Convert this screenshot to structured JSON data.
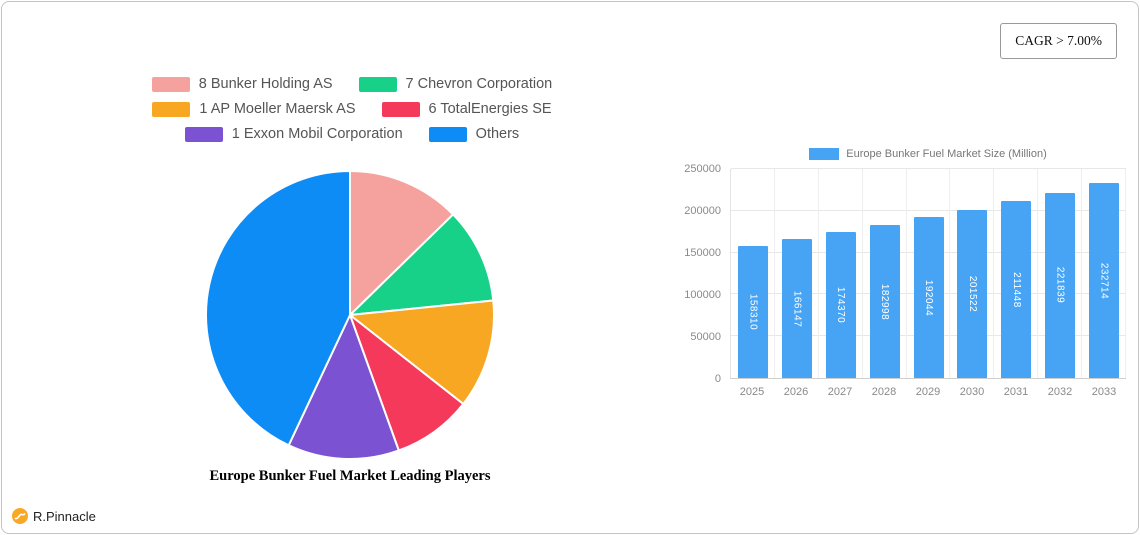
{
  "cagr_badge": {
    "label": "CAGR > 7.00%"
  },
  "branding": {
    "logo_text": "R.Pinnacle"
  },
  "chart_data": [
    {
      "type": "pie",
      "title": "Europe Bunker Fuel Market Leading Players",
      "labels": [
        "8 Bunker Holding AS",
        "7 Chevron Corporation",
        "1 AP Moeller Maersk AS",
        "6 TotalEnergies SE",
        "1 Exxon Mobil Corporation",
        "Others"
      ],
      "values": [
        12.7,
        10.7,
        12.2,
        8.9,
        12.5,
        43.0
      ],
      "colors": [
        "#f5a19d",
        "#18d189",
        "#f8a723",
        "#f4395b",
        "#7b52d1",
        "#0e8cf6"
      ],
      "legend_position": "top"
    },
    {
      "type": "bar",
      "legend_label": "Europe Bunker Fuel Market Size (Million)",
      "categories": [
        "2025",
        "2026",
        "2027",
        "2028",
        "2029",
        "2030",
        "2031",
        "2032",
        "2033"
      ],
      "values": [
        158310,
        166147,
        174370,
        182998,
        192044,
        201522,
        211448,
        221839,
        232714
      ],
      "bar_color": "#47a4f5",
      "ylim": [
        0,
        250000
      ],
      "yticks": [
        0,
        50000,
        100000,
        150000,
        200000,
        250000
      ],
      "grid": true,
      "legend_position": "top"
    }
  ]
}
